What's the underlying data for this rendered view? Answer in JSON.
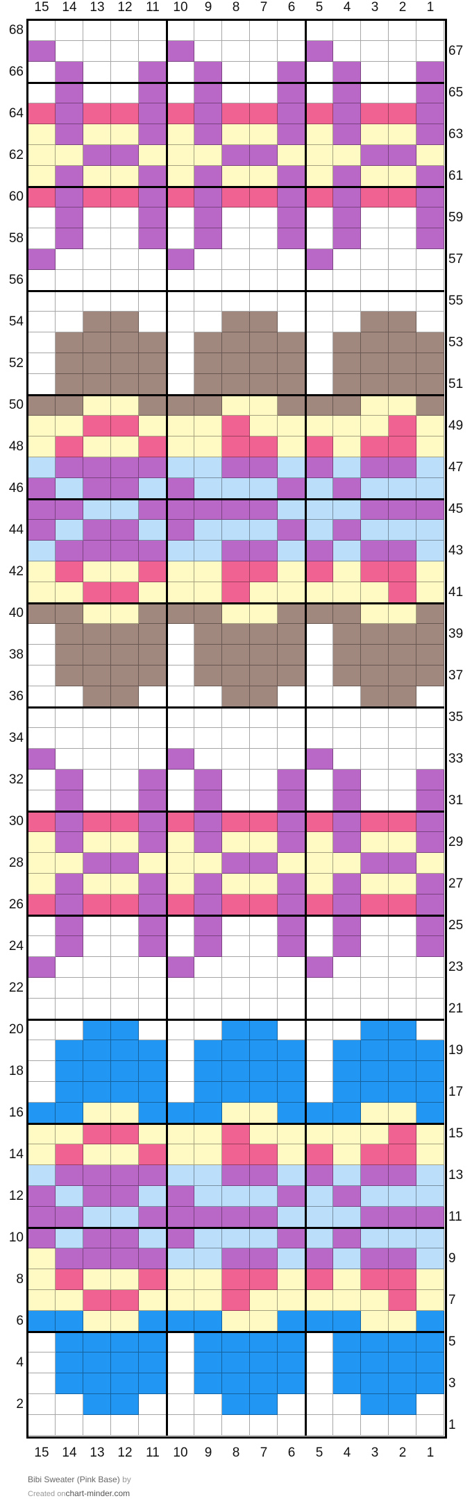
{
  "chart_data": {
    "type": "heatmap",
    "title": "Bibi Sweater (Pink Base)",
    "columns": [
      15,
      14,
      13,
      12,
      11,
      10,
      9,
      8,
      7,
      6,
      5,
      4,
      3,
      2,
      1
    ],
    "row_numbers_top_to_bottom_start": 68,
    "palette": {
      "W": "#ffffff",
      "P": "#ba68c8",
      "K": "#f06292",
      "Y": "#fff9c4",
      "G": "#a1887f",
      "L": "#bbdefb",
      "B": "#2196f3"
    },
    "rows": [
      "WWWWWWWWWWWWWWW",
      "PWWWWPWWWWPWWWW",
      "WPWWPWPWWPWPWWP",
      "WPWWPWPWWPWPWWP",
      "KPKKPKPKKPKPKKP",
      "YPYYPYPYYPYPYYP",
      "YYPPYYYPPYYYPPY",
      "YPYYPYPYYPYPYYP",
      "KPKKPKPKKPKPKKP",
      "WPWWPWPWWPWPWWP",
      "WPWWPWPWWPWPWWP",
      "PWWWWPWWWWPWWWW",
      "WWWWWWWWWWWWWWW",
      "WWWWWWWWWWWWWWW",
      "WWGGWWWGGWWWGGW",
      "WGGGGWGGGGWGGGG",
      "WGGGGWGGGGWGGGG",
      "WGGGGWGGGGWGGGG",
      "GGYYGGGYYGGGYYG",
      "YYKKYYYKYYYYYKY",
      "YKYYKYYKKYKYKKY",
      "LPPPPLLPPLPLPPL",
      "PLPPLPLLLPLPLLL",
      "PPLLPPPPPLLLPPP",
      "PLPPLPLLLPLPLLL",
      "LPPPPLLPPLPLPPL",
      "YKYYKYYKKYKYKKY",
      "YYKKYYYKYYYYYKY",
      "GGYYGGGYYGGGYYG",
      "WGGGGWGGGGWGGGG",
      "WGGGGWGGGGWGGGG",
      "WGGGGWGGGGWGGGG",
      "WWGGWWWGGWWWGGW",
      "WWWWWWWWWWWWWWW",
      "WWWWWWWWWWWWWWW",
      "PWWWWPWWWWPWWWW",
      "WPWWPWPWWPWPWWP",
      "WPWWPWPWWPWPWWP",
      "KPKKPKPKKPKPKKP",
      "YPYYPYPYYPYPYYP",
      "YYPPYYYPPYYYPPY",
      "YPYYPYPYYPYPYYP",
      "KPKKPKPKKPKPKKP",
      "WPWWPWPWWPWPWWP",
      "WPWWPWPWWPWPWWP",
      "PWWWWPWWWWPWWWW",
      "WWWWWWWWWWWWWWW",
      "WWWWWWWWWWWWWWW",
      "WWBBWWWBBWWWBBW",
      "WBBBBWBBBBWBBBB",
      "WBBBBWBBBBWBBBB",
      "WBBBBWBBBBWBBBB",
      "BBYYBBBYYBBBYYB",
      "YYKKYYYKYYYYYKY",
      "YKYYKYYKKYKYKKY",
      "LPPPPLLPPLPLPPL",
      "PLPPLPLLLPLPLLL",
      "PPLLPPPPPLLLPPP",
      "PLPPLPLLLPLPLLL",
      "YPPPPLLPPLPLPPL",
      "YKYYKYYKKYKYKKY",
      "YYKKYYYKYYYYYKY",
      "BBYYBBBYYBBBYYB",
      "WBBBBWBBBBWBBBB",
      "WBBBBWBBBBWBBBB",
      "WBBBBWBBBBWBBBB",
      "WWBBWWWBBWWWBBW",
      "WWWWWWWWWWWWWWW"
    ],
    "grid": true,
    "major_grid_every": 5
  },
  "footer": {
    "title": "Bibi Sweater (Pink Base)",
    "by": "by",
    "created_on": "Created on",
    "site": "chart-minder.com"
  }
}
